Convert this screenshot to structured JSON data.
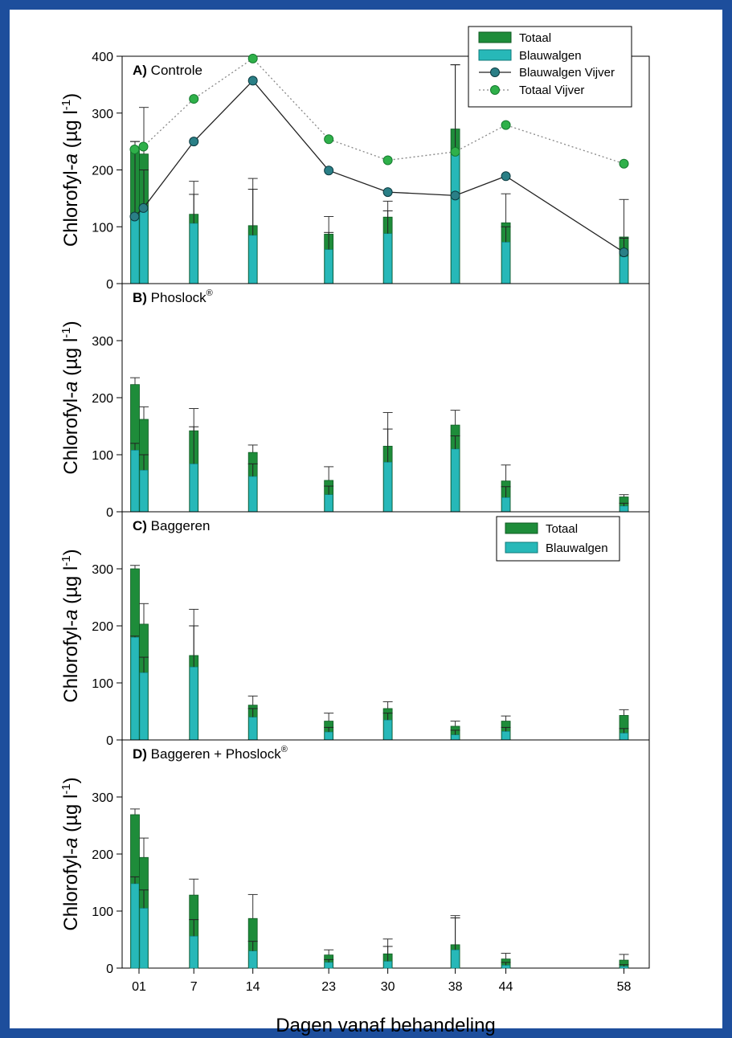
{
  "colors": {
    "totaal": "#1e8c3a",
    "totaal_dark": "#0f5a22",
    "blauwalgen": "#27b8b8",
    "blauwalgen_dark": "#0f7a7a",
    "vijver_blauw": "#2a7f86",
    "vijver_totaal": "#2fb04a",
    "frame": "#1d4e9c"
  },
  "chart_data": {
    "type": "bar",
    "xlabel": "Dagen vanaf behandeling",
    "ylabel": "Chlorofyl-a (µg l⁻¹)",
    "ylabel_parts": {
      "pre": "Chlorofyl-",
      "italic": "a",
      "mid": " (µg l",
      "sup": "-1",
      "post": ")"
    },
    "x_ticks": [
      "01",
      "7",
      "14",
      "23",
      "30",
      "38",
      "44",
      "58"
    ],
    "x_tick_days": [
      0.5,
      7,
      14,
      23,
      30,
      38,
      44,
      58
    ],
    "x_range": [
      -1.5,
      61
    ],
    "bar_days": [
      0,
      1,
      7,
      14,
      23,
      30,
      38,
      44,
      58
    ],
    "legend_top": {
      "totaal": "Totaal",
      "blauwalgen": "Blauwalgen",
      "blauwalgen_vijver": "Blauwalgen Vijver",
      "totaal_vijver": "Totaal Vijver"
    },
    "legend_c": {
      "totaal": "Totaal",
      "blauwalgen": "Blauwalgen"
    },
    "panels": [
      {
        "id": "A",
        "label": "A) Controle",
        "sup": "",
        "ylim": [
          0,
          400
        ],
        "yticks": [
          0,
          100,
          200,
          300,
          400
        ],
        "totaal": [
          235,
          228,
          122,
          102,
          87,
          117,
          272,
          107,
          82
        ],
        "totaal_err": [
          250,
          310,
          180,
          185,
          118,
          145,
          385,
          158,
          148
        ],
        "blauwalgen": [
          118,
          133,
          106,
          85,
          60,
          88,
          232,
          73,
          48
        ],
        "blauwalgen_err": [
          250,
          200,
          157,
          166,
          90,
          128,
          385,
          100,
          80
        ],
        "vijver_days": [
          0,
          1,
          7,
          14,
          23,
          30,
          38,
          44,
          58
        ],
        "totaal_vijver": [
          236,
          241,
          325,
          396,
          254,
          217,
          232,
          279,
          211
        ],
        "blauwalgen_vijver": [
          118,
          133,
          250,
          357,
          199,
          161,
          155,
          189,
          55
        ]
      },
      {
        "id": "B",
        "label": "B) Phoslock",
        "sup": "®",
        "ylim": [
          0,
          400
        ],
        "yticks": [
          0,
          100,
          200,
          300
        ],
        "totaal": [
          223,
          162,
          142,
          104,
          55,
          115,
          152,
          54,
          26
        ],
        "totaal_err": [
          235,
          184,
          181,
          117,
          79,
          174,
          178,
          82,
          30
        ],
        "blauwalgen": [
          108,
          73,
          84,
          62,
          30,
          87,
          110,
          25,
          10
        ],
        "blauwalgen_err": [
          120,
          100,
          149,
          84,
          45,
          145,
          133,
          44,
          15
        ]
      },
      {
        "id": "C",
        "label": "C) Baggeren",
        "sup": "",
        "ylim": [
          0,
          400
        ],
        "yticks": [
          0,
          100,
          200,
          300
        ],
        "totaal": [
          300,
          203,
          148,
          61,
          33,
          55,
          24,
          33,
          43
        ],
        "totaal_err": [
          306,
          239,
          229,
          77,
          47,
          67,
          33,
          42,
          53
        ],
        "blauwalgen": [
          180,
          118,
          128,
          40,
          14,
          35,
          9,
          15,
          12
        ],
        "blauwalgen_err": [
          182,
          145,
          200,
          55,
          22,
          47,
          17,
          22,
          20
        ]
      },
      {
        "id": "D",
        "label": "D) Baggeren + Phoslock",
        "sup": "®",
        "ylim": [
          0,
          400
        ],
        "yticks": [
          0,
          100,
          200,
          300
        ],
        "totaal": [
          269,
          194,
          128,
          87,
          23,
          25,
          41,
          16,
          14
        ],
        "totaal_err": [
          279,
          228,
          156,
          129,
          32,
          51,
          92,
          26,
          24
        ],
        "blauwalgen": [
          148,
          105,
          56,
          30,
          10,
          12,
          32,
          5,
          3
        ],
        "blauwalgen_err": [
          160,
          137,
          85,
          47,
          15,
          38,
          88,
          10,
          6
        ]
      }
    ]
  }
}
